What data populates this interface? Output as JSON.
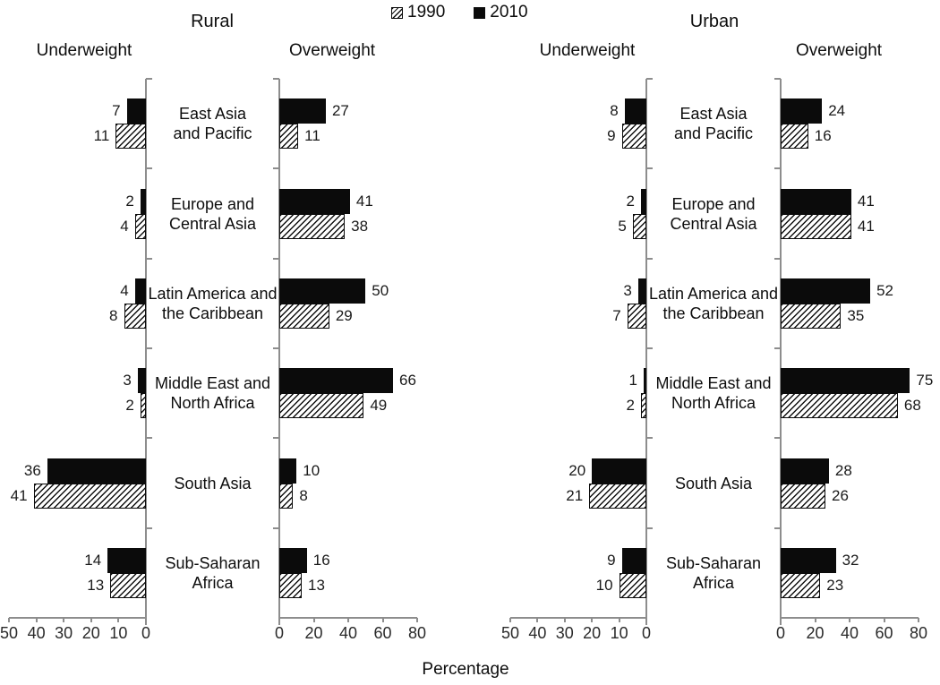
{
  "chart_data": {
    "type": "bar",
    "title": "",
    "xlabel": "Percentage",
    "legend": [
      {
        "name": "1990",
        "style": "hatched"
      },
      {
        "name": "2010",
        "style": "solid"
      }
    ],
    "categories": [
      "East Asia\nand Pacific",
      "Europe and\nCentral Asia",
      "Latin America and\nthe Caribbean",
      "Middle East and\nNorth Africa",
      "South Asia",
      "Sub-Saharan\nAfrica"
    ],
    "groups": [
      {
        "label": "Rural",
        "panels": [
          {
            "label": "Underweight",
            "axis": {
              "max": 50,
              "ticks": [
                50,
                40,
                30,
                20,
                10,
                0
              ],
              "direction": "left"
            },
            "series": [
              {
                "name": "2010",
                "style": "solid",
                "values": [
                  7,
                  2,
                  4,
                  3,
                  36,
                  14
                ]
              },
              {
                "name": "1990",
                "style": "hatched",
                "values": [
                  11,
                  4,
                  8,
                  2,
                  41,
                  13
                ]
              }
            ]
          },
          {
            "label": "Overweight",
            "axis": {
              "max": 80,
              "ticks": [
                0,
                20,
                40,
                60,
                80
              ],
              "direction": "right"
            },
            "series": [
              {
                "name": "2010",
                "style": "solid",
                "values": [
                  27,
                  41,
                  50,
                  66,
                  10,
                  16
                ]
              },
              {
                "name": "1990",
                "style": "hatched",
                "values": [
                  11,
                  38,
                  29,
                  49,
                  8,
                  13
                ]
              }
            ]
          }
        ]
      },
      {
        "label": "Urban",
        "panels": [
          {
            "label": "Underweight",
            "axis": {
              "max": 50,
              "ticks": [
                50,
                40,
                30,
                20,
                10,
                0
              ],
              "direction": "left"
            },
            "series": [
              {
                "name": "2010",
                "style": "solid",
                "values": [
                  8,
                  2,
                  3,
                  1,
                  20,
                  9
                ]
              },
              {
                "name": "1990",
                "style": "hatched",
                "values": [
                  9,
                  5,
                  7,
                  2,
                  21,
                  10
                ]
              }
            ]
          },
          {
            "label": "Overweight",
            "axis": {
              "max": 80,
              "ticks": [
                0,
                20,
                40,
                60,
                80
              ],
              "direction": "right"
            },
            "series": [
              {
                "name": "2010",
                "style": "solid",
                "values": [
                  24,
                  41,
                  52,
                  75,
                  28,
                  32
                ]
              },
              {
                "name": "1990",
                "style": "hatched",
                "values": [
                  16,
                  41,
                  35,
                  68,
                  26,
                  23
                ]
              }
            ]
          }
        ]
      }
    ]
  }
}
